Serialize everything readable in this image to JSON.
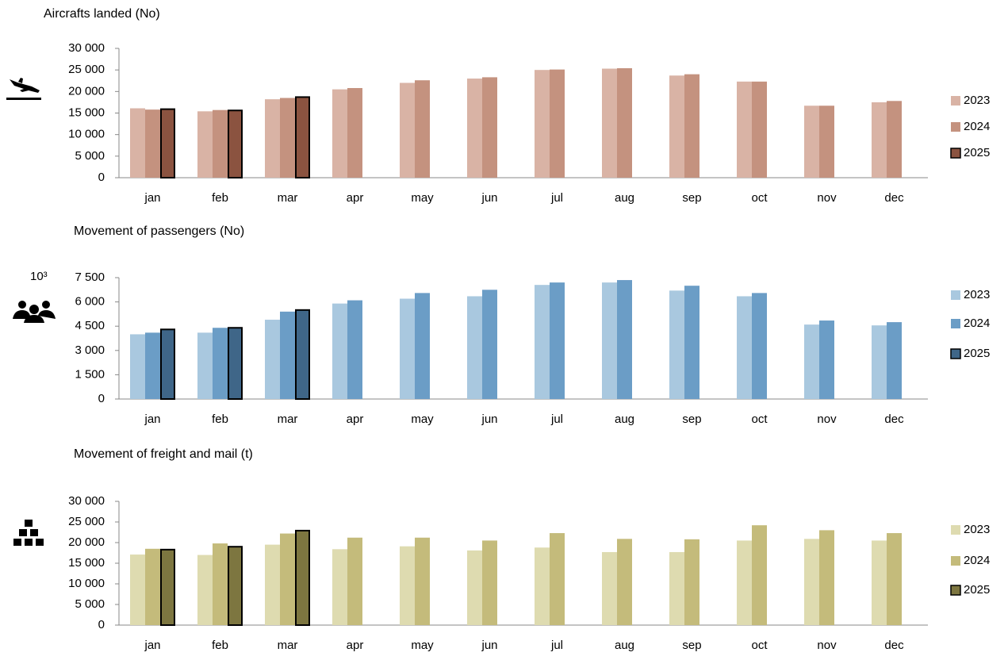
{
  "chart_data": [
    {
      "type": "bar",
      "title": "Aircrafts landed (No)",
      "categories": [
        "jan",
        "feb",
        "mar",
        "apr",
        "may",
        "jun",
        "jul",
        "aug",
        "sep",
        "oct",
        "nov",
        "dec"
      ],
      "series": [
        {
          "name": "2023",
          "color": "#d9b3a5",
          "values": [
            16100,
            15400,
            18200,
            20500,
            22000,
            23000,
            25000,
            25300,
            23700,
            22300,
            16700,
            17500
          ]
        },
        {
          "name": "2024",
          "color": "#c4927f",
          "values": [
            15800,
            15700,
            18500,
            20800,
            22600,
            23300,
            25100,
            25400,
            24000,
            22300,
            16700,
            17800
          ]
        },
        {
          "name": "2025",
          "color": "#8b5340",
          "edgecolor": "#000000",
          "values": [
            15900,
            15600,
            18700,
            null,
            null,
            null,
            null,
            null,
            null,
            null,
            null,
            null
          ]
        }
      ],
      "ylim": [
        0,
        30000
      ],
      "yticks": [
        0,
        {
          "value": 5000,
          "label": "5 000"
        },
        {
          "value": 10000,
          "label": "10 000"
        },
        {
          "value": 15000,
          "label": "15 000"
        },
        {
          "value": 20000,
          "label": "20 000"
        },
        {
          "value": 25000,
          "label": "25 000"
        },
        {
          "value": 30000,
          "label": "30 000"
        }
      ],
      "grid": false,
      "legend": "right"
    },
    {
      "type": "bar",
      "title": "Movement of passengers (No)",
      "unit": "10³",
      "categories": [
        "jan",
        "feb",
        "mar",
        "apr",
        "may",
        "jun",
        "jul",
        "aug",
        "sep",
        "oct",
        "nov",
        "dec"
      ],
      "series": [
        {
          "name": "2023",
          "color": "#a9c8df",
          "values": [
            4000,
            4100,
            4900,
            5900,
            6200,
            6350,
            7050,
            7200,
            6700,
            6350,
            4600,
            4550
          ]
        },
        {
          "name": "2024",
          "color": "#6b9dc6",
          "values": [
            4100,
            4400,
            5400,
            6100,
            6550,
            6750,
            7200,
            7350,
            7000,
            6550,
            4850,
            4750
          ]
        },
        {
          "name": "2025",
          "color": "#3f6688",
          "edgecolor": "#000000",
          "values": [
            4300,
            4400,
            5500,
            null,
            null,
            null,
            null,
            null,
            null,
            null,
            null,
            null
          ]
        }
      ],
      "ylim": [
        0,
        7500
      ],
      "yticks": [
        0,
        {
          "value": 1500,
          "label": "1 500"
        },
        {
          "value": 3000,
          "label": "3 000"
        },
        {
          "value": 4500,
          "label": "4 500"
        },
        {
          "value": 6000,
          "label": "6 000"
        },
        {
          "value": 7500,
          "label": "7 500"
        }
      ],
      "grid": false,
      "legend": "right"
    },
    {
      "type": "bar",
      "title": "Movement of freight and mail (t)",
      "categories": [
        "jan",
        "feb",
        "mar",
        "apr",
        "may",
        "jun",
        "jul",
        "aug",
        "sep",
        "oct",
        "nov",
        "dec"
      ],
      "series": [
        {
          "name": "2023",
          "color": "#dedbb0",
          "values": [
            17100,
            17000,
            19500,
            18400,
            19100,
            18100,
            18800,
            17700,
            17700,
            20500,
            20900,
            20500
          ]
        },
        {
          "name": "2024",
          "color": "#c4bb7b",
          "values": [
            18500,
            19800,
            22200,
            21200,
            21200,
            20500,
            22300,
            20900,
            20800,
            24200,
            23000,
            22300
          ]
        },
        {
          "name": "2025",
          "color": "#7d7640",
          "edgecolor": "#000000",
          "values": [
            18300,
            19000,
            22900,
            null,
            null,
            null,
            null,
            null,
            null,
            null,
            null,
            null
          ]
        }
      ],
      "ylim": [
        0,
        30000
      ],
      "yticks": [
        0,
        {
          "value": 5000,
          "label": "5 000"
        },
        {
          "value": 10000,
          "label": "10 000"
        },
        {
          "value": 15000,
          "label": "15 000"
        },
        {
          "value": 20000,
          "label": "20 000"
        },
        {
          "value": 25000,
          "label": "25 000"
        },
        {
          "value": 30000,
          "label": "30 000"
        }
      ],
      "grid": false,
      "legend": "right"
    }
  ]
}
